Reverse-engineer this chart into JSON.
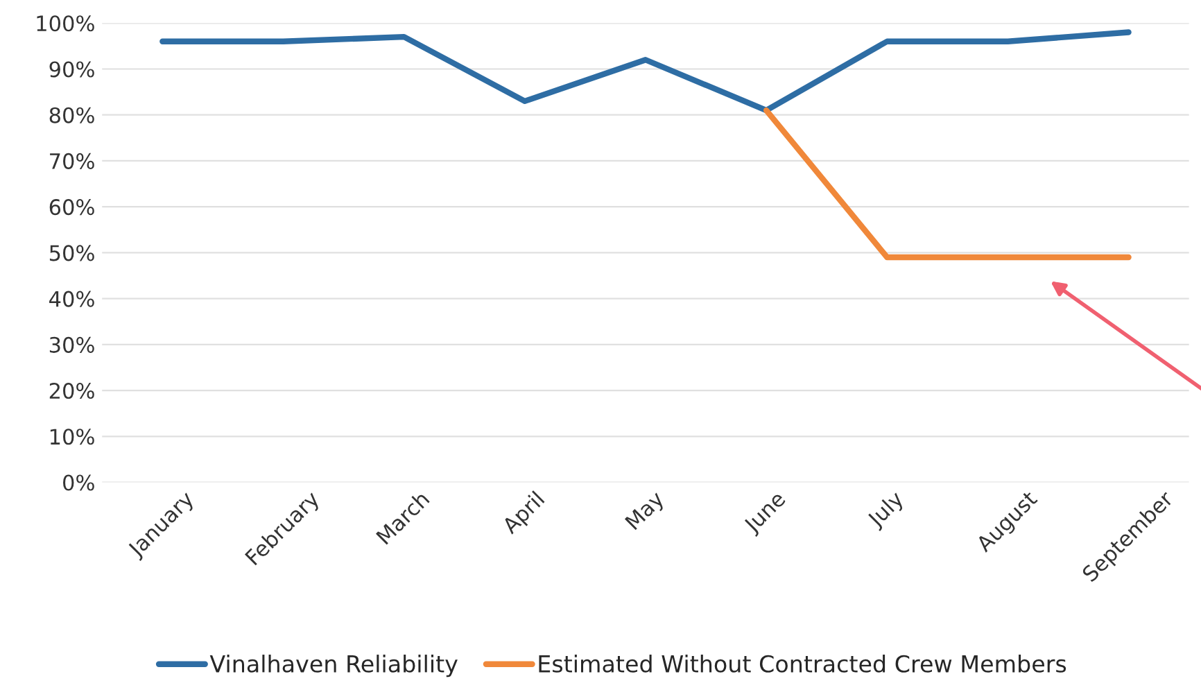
{
  "chart_data": {
    "type": "line",
    "categories": [
      "January",
      "February",
      "March",
      "April",
      "May",
      "June",
      "July",
      "August",
      "September"
    ],
    "series": [
      {
        "name": "Vinalhaven Reliability",
        "color": "#2e6da4",
        "values": [
          96,
          96,
          97,
          83,
          92,
          81,
          96,
          96,
          98
        ]
      },
      {
        "name": "Estimated Without Contracted Crew Members",
        "color": "#f0883a",
        "values": [
          null,
          null,
          null,
          null,
          null,
          81,
          49,
          49,
          49
        ]
      }
    ],
    "ylim": [
      0,
      100
    ],
    "yticks": [
      {
        "value": 0,
        "label": "0%"
      },
      {
        "value": 10,
        "label": "10%"
      },
      {
        "value": 20,
        "label": "20%"
      },
      {
        "value": 30,
        "label": "30%"
      },
      {
        "value": 40,
        "label": "40%"
      },
      {
        "value": 50,
        "label": "50%"
      },
      {
        "value": 60,
        "label": "60%"
      },
      {
        "value": 70,
        "label": "70%"
      },
      {
        "value": 80,
        "label": "80%"
      },
      {
        "value": 90,
        "label": "90%"
      },
      {
        "value": 100,
        "label": "100%"
      }
    ],
    "grid": "y",
    "legend": "bottom",
    "marker": "none",
    "line_style": "solid"
  }
}
